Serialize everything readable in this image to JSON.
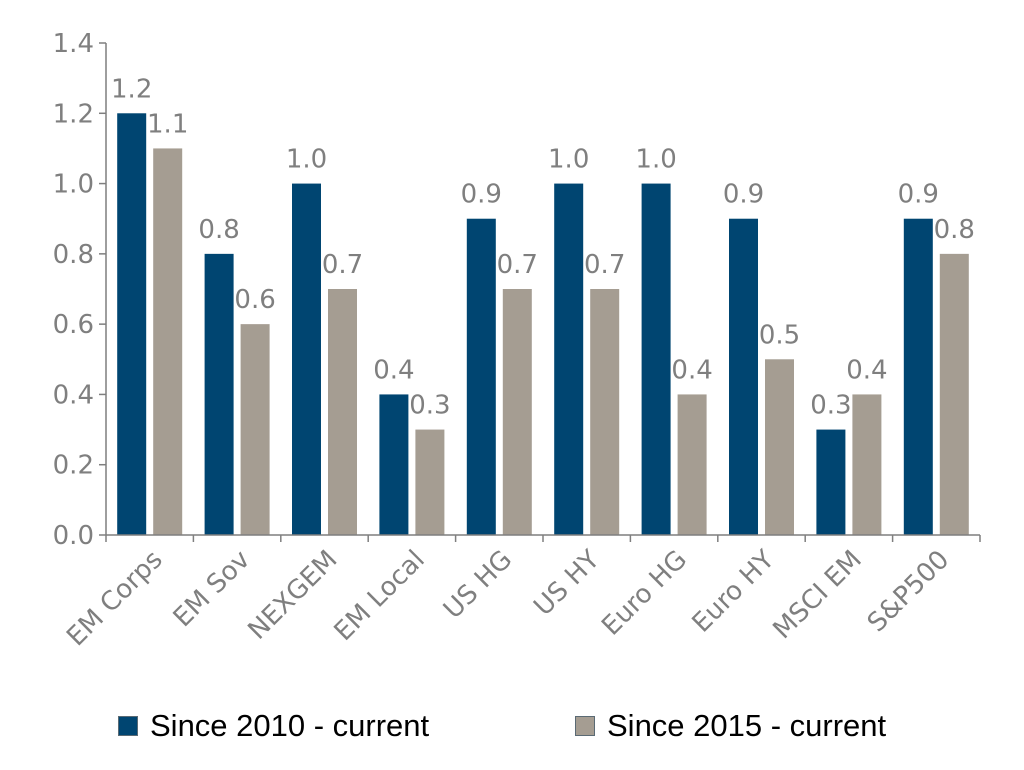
{
  "chart_data": {
    "type": "bar",
    "categories": [
      "EM Corps",
      "EM Sov",
      "NEXGEM",
      "EM Local",
      "US HG",
      "US HY",
      "Euro HG",
      "Euro HY",
      "MSCI EM",
      "S&P500"
    ],
    "series": [
      {
        "name": "Since 2010 - current",
        "values": [
          1.2,
          0.8,
          1.0,
          0.4,
          0.9,
          1.0,
          1.0,
          0.9,
          0.3,
          0.9
        ],
        "labels": [
          "1.2",
          "0.8",
          "1.0",
          "0.4",
          "0.9",
          "1.0",
          "1.0",
          "0.9",
          "0.3",
          "0.9"
        ],
        "color": "#004571"
      },
      {
        "name": "Since 2015 - current",
        "values": [
          1.1,
          0.6,
          0.7,
          0.3,
          0.7,
          0.7,
          0.4,
          0.5,
          0.4,
          0.8
        ],
        "labels": [
          "1.1",
          "0.6",
          "0.7",
          "0.3",
          "0.7",
          "0.7",
          "0.4",
          "0.5",
          "0.4",
          "0.8"
        ],
        "color": "#a59d92"
      }
    ],
    "yticks": [
      "0.0",
      "0.2",
      "0.4",
      "0.6",
      "0.8",
      "1.0",
      "1.2",
      "1.4"
    ],
    "ylim": [
      0,
      1.4
    ],
    "grid": false,
    "legend_position": "bottom",
    "axis_color": "#7f7f7f",
    "text_color": "#7f7f7f"
  }
}
